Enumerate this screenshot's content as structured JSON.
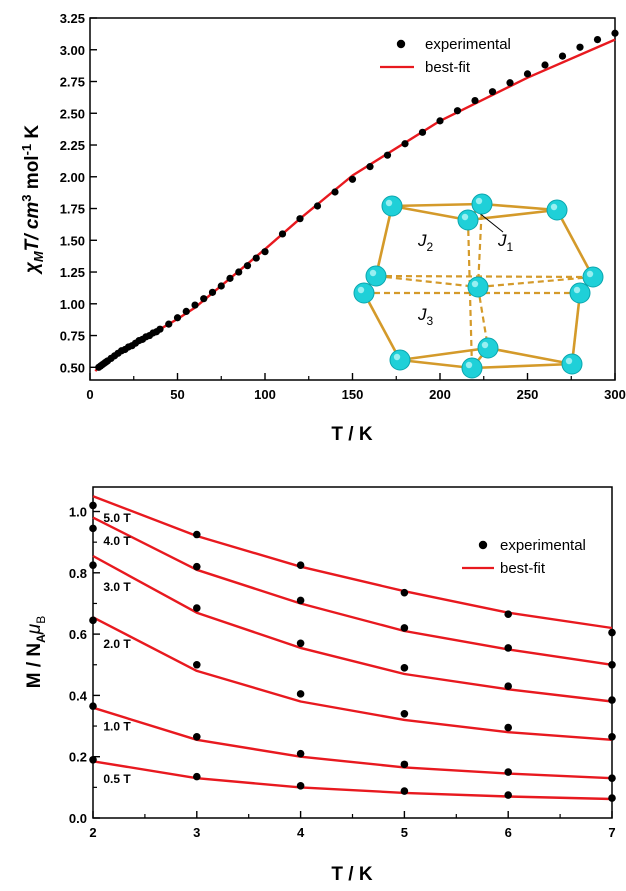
{
  "chart_data": [
    {
      "type": "scatter",
      "xlabel": "T / K",
      "ylabel_parts": [
        "χ",
        "M",
        "T/ cm",
        "3",
        " mol",
        "-1",
        " K"
      ],
      "xlim": [
        0,
        300
      ],
      "ylim": [
        0.4,
        3.25
      ],
      "xticks": [
        0,
        50,
        100,
        150,
        200,
        250,
        300
      ],
      "yticks": [
        0.5,
        0.75,
        1.0,
        1.25,
        1.5,
        1.75,
        2.0,
        2.25,
        2.5,
        2.75,
        3.0,
        3.25
      ],
      "ytick_labels": [
        "0.50",
        "0.75",
        "1.00",
        "1.25",
        "1.50",
        "1.75",
        "2.00",
        "2.25",
        "2.50",
        "2.75",
        "3.00",
        "3.25"
      ],
      "legend": [
        {
          "label": "experimental",
          "marker": "dot"
        },
        {
          "label": "best-fit",
          "marker": "line"
        }
      ],
      "legend_position": "top-right",
      "colors": {
        "experimental": "#000000",
        "fit": "#e8191f"
      },
      "experimental": {
        "x": [
          5,
          6,
          7,
          8,
          9,
          10,
          12,
          14,
          16,
          18,
          20,
          22,
          24,
          26,
          28,
          30,
          32,
          34,
          36,
          38,
          40,
          45,
          50,
          55,
          60,
          65,
          70,
          75,
          80,
          85,
          90,
          95,
          100,
          110,
          120,
          130,
          140,
          150,
          160,
          170,
          180,
          190,
          200,
          210,
          220,
          230,
          240,
          250,
          260,
          270,
          280,
          290,
          300
        ],
        "y": [
          0.5,
          0.51,
          0.52,
          0.53,
          0.54,
          0.55,
          0.57,
          0.59,
          0.61,
          0.63,
          0.64,
          0.66,
          0.67,
          0.69,
          0.71,
          0.72,
          0.74,
          0.75,
          0.77,
          0.78,
          0.8,
          0.84,
          0.89,
          0.94,
          0.99,
          1.04,
          1.09,
          1.14,
          1.2,
          1.25,
          1.3,
          1.36,
          1.41,
          1.55,
          1.67,
          1.77,
          1.88,
          1.98,
          2.08,
          2.17,
          2.26,
          2.35,
          2.44,
          2.52,
          2.6,
          2.67,
          2.74,
          2.81,
          2.88,
          2.95,
          3.02,
          3.08,
          3.13
        ]
      },
      "fit": {
        "x": [
          3,
          5,
          10,
          20,
          30,
          40,
          50,
          60,
          80,
          100,
          120,
          150,
          200,
          250,
          300
        ],
        "y": [
          0.47,
          0.5,
          0.56,
          0.64,
          0.72,
          0.8,
          0.88,
          0.97,
          1.2,
          1.43,
          1.67,
          2.01,
          2.44,
          2.78,
          3.08
        ]
      },
      "inset_labels": [
        {
          "base": "J",
          "sub": "2"
        },
        {
          "base": "J",
          "sub": "1"
        },
        {
          "base": "J",
          "sub": "3"
        }
      ]
    },
    {
      "type": "scatter",
      "xlabel": "T / K",
      "ylabel_parts": [
        "M / N",
        "A",
        "μ",
        "B"
      ],
      "xlim": [
        2,
        7
      ],
      "ylim": [
        0,
        1.08
      ],
      "xticks": [
        2,
        3,
        4,
        5,
        6,
        7
      ],
      "yticks": [
        0.0,
        0.2,
        0.4,
        0.6,
        0.8,
        1.0
      ],
      "ytick_labels": [
        "0.0",
        "0.2",
        "0.4",
        "0.6",
        "0.8",
        "1.0"
      ],
      "legend": [
        {
          "label": "experimental",
          "marker": "dot"
        },
        {
          "label": "best-fit",
          "marker": "line"
        }
      ],
      "legend_position": "right",
      "colors": {
        "experimental": "#000000",
        "fit": "#e8191f"
      },
      "x": [
        2,
        3,
        4,
        5,
        6,
        7
      ],
      "series": [
        {
          "field": "5.0 T",
          "label_xy": [
            2.1,
            0.965
          ],
          "experimental": [
            1.02,
            0.925,
            0.825,
            0.735,
            0.665,
            0.605
          ],
          "fit": [
            1.05,
            0.92,
            0.82,
            0.74,
            0.67,
            0.62
          ]
        },
        {
          "field": "4.0 T",
          "label_xy": [
            2.1,
            0.89
          ],
          "experimental": [
            0.945,
            0.82,
            0.71,
            0.62,
            0.555,
            0.5
          ],
          "fit": [
            0.98,
            0.81,
            0.7,
            0.61,
            0.55,
            0.5
          ]
        },
        {
          "field": "3.0 T",
          "label_xy": [
            2.1,
            0.74
          ],
          "experimental": [
            0.825,
            0.685,
            0.57,
            0.49,
            0.43,
            0.385
          ],
          "fit": [
            0.855,
            0.67,
            0.555,
            0.47,
            0.42,
            0.38
          ]
        },
        {
          "field": "2.0 T",
          "label_xy": [
            2.1,
            0.555
          ],
          "experimental": [
            0.645,
            0.5,
            0.405,
            0.34,
            0.295,
            0.265
          ],
          "fit": [
            0.655,
            0.48,
            0.38,
            0.32,
            0.28,
            0.255
          ]
        },
        {
          "field": "1.0 T",
          "label_xy": [
            2.1,
            0.285
          ],
          "experimental": [
            0.365,
            0.265,
            0.21,
            0.175,
            0.15,
            0.13
          ],
          "fit": [
            0.36,
            0.255,
            0.2,
            0.165,
            0.145,
            0.13
          ]
        },
        {
          "field": "0.5 T",
          "label_xy": [
            2.1,
            0.115
          ],
          "experimental": [
            0.19,
            0.135,
            0.105,
            0.088,
            0.075,
            0.065
          ],
          "fit": [
            0.185,
            0.13,
            0.1,
            0.082,
            0.07,
            0.062
          ]
        }
      ]
    }
  ]
}
